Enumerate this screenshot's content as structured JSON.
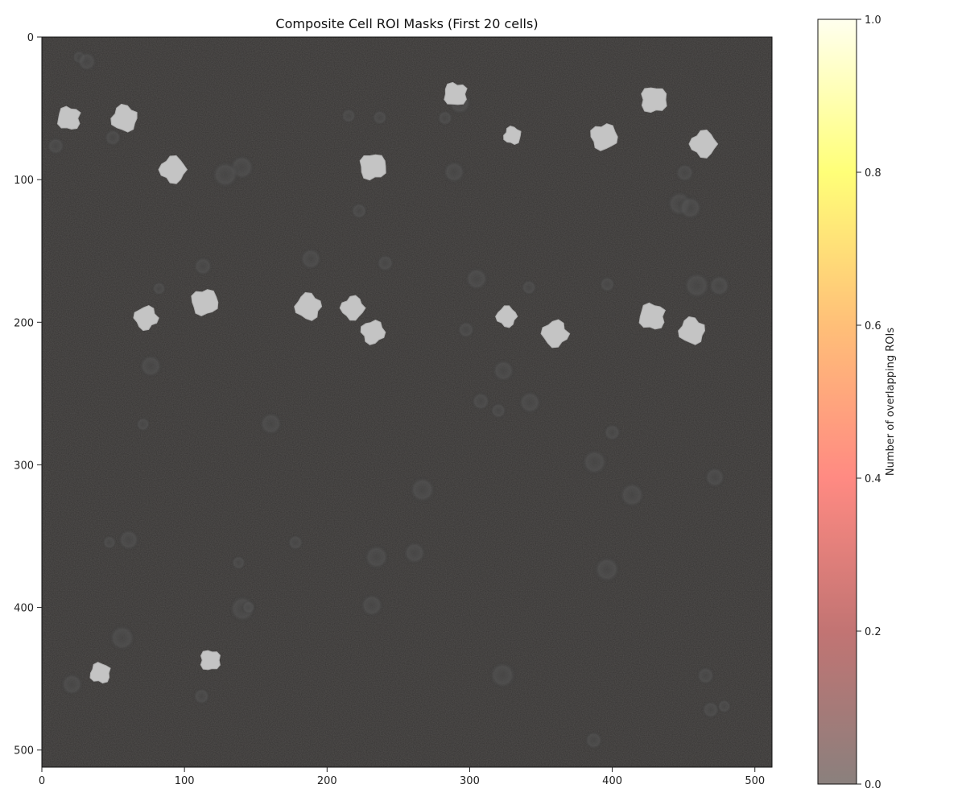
{
  "chart_data": {
    "type": "heatmap",
    "title": "Composite Cell ROI Masks (First 20 cells)",
    "xlabel": "",
    "ylabel": "",
    "xlim": [
      0,
      512
    ],
    "ylim": [
      512,
      0
    ],
    "x_ticks": [
      0,
      100,
      200,
      300,
      400,
      500
    ],
    "y_ticks": [
      0,
      100,
      200,
      300,
      400,
      500
    ],
    "background": "grayscale fluorescence image",
    "colorbar": {
      "label": "Number of overlapping ROIs",
      "range": [
        0.0,
        1.0
      ],
      "ticks": [
        "0.0",
        "0.2",
        "0.4",
        "0.6",
        "0.8",
        "1.0"
      ],
      "colors": [
        "#8a807d",
        "#c27473",
        "#ff8a82",
        "#ffbf78",
        "#ffff78",
        "#ffffee"
      ]
    },
    "rois": [
      {
        "x": 19,
        "y": 57,
        "r": 8
      },
      {
        "x": 58,
        "y": 57,
        "r": 9
      },
      {
        "x": 92,
        "y": 93,
        "r": 9
      },
      {
        "x": 73,
        "y": 197,
        "r": 8
      },
      {
        "x": 114,
        "y": 186,
        "r": 9
      },
      {
        "x": 118,
        "y": 437,
        "r": 7
      },
      {
        "x": 41,
        "y": 446,
        "r": 7
      },
      {
        "x": 187,
        "y": 189,
        "r": 9
      },
      {
        "x": 218,
        "y": 190,
        "r": 8
      },
      {
        "x": 232,
        "y": 207,
        "r": 8
      },
      {
        "x": 232,
        "y": 91,
        "r": 9
      },
      {
        "x": 290,
        "y": 40,
        "r": 8
      },
      {
        "x": 330,
        "y": 69,
        "r": 6
      },
      {
        "x": 326,
        "y": 196,
        "r": 7
      },
      {
        "x": 360,
        "y": 208,
        "r": 9
      },
      {
        "x": 394,
        "y": 70,
        "r": 9
      },
      {
        "x": 429,
        "y": 44,
        "r": 9
      },
      {
        "x": 428,
        "y": 196,
        "r": 9
      },
      {
        "x": 456,
        "y": 206,
        "r": 9
      },
      {
        "x": 464,
        "y": 75,
        "r": 9
      }
    ]
  }
}
